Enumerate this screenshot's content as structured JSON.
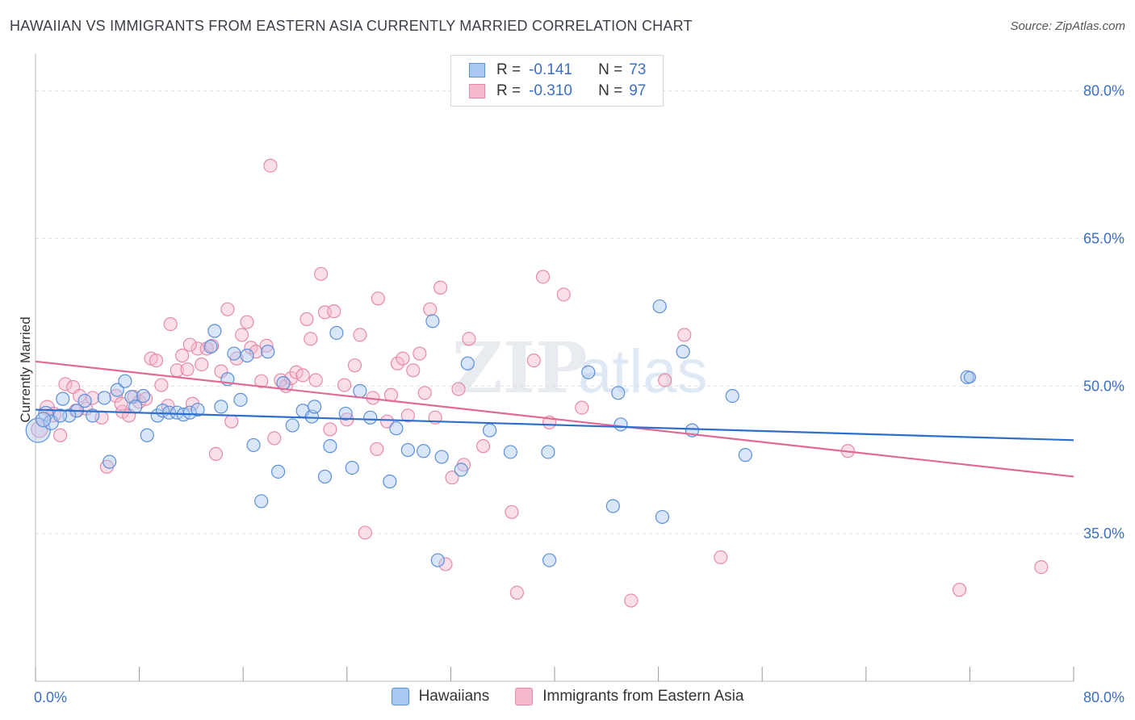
{
  "header": {
    "title": "HAWAIIAN VS IMMIGRANTS FROM EASTERN ASIA CURRENTLY MARRIED CORRELATION CHART",
    "source": "Source: ZipAtlas.com"
  },
  "watermark": {
    "zip": "ZIP",
    "atlas": "atlas"
  },
  "legend_top": {
    "rows": [
      {
        "r_label": "R =",
        "r_value": "-0.141",
        "n_label": "N =",
        "n_value": "73"
      },
      {
        "r_label": "R =",
        "r_value": "-0.310",
        "n_label": "N =",
        "n_value": "97"
      }
    ]
  },
  "colors": {
    "blue_fill": "#aac8ef",
    "blue_stroke": "#5b8fd8",
    "blue_line": "#2f6fcc",
    "pink_fill": "#f6b8cc",
    "pink_stroke": "#e58aa8",
    "pink_line": "#e06a94",
    "grid": "#dddddd",
    "tick_text": "#3b6fc7"
  },
  "chart_data": {
    "type": "scatter",
    "title": "HAWAIIAN VS IMMIGRANTS FROM EASTERN ASIA CURRENTLY MARRIED CORRELATION CHART",
    "xlabel": "",
    "ylabel": "Currently Married",
    "xlim": [
      0,
      80
    ],
    "ylim": [
      20,
      83
    ],
    "x_tick_labels": [
      "0.0%",
      "80.0%"
    ],
    "y_ticks": [
      {
        "value": 35,
        "label": "35.0%"
      },
      {
        "value": 50,
        "label": "50.0%"
      },
      {
        "value": 65,
        "label": "65.0%"
      },
      {
        "value": 80,
        "label": "80.0%"
      }
    ],
    "grid": "horizontal dashed",
    "legend_position": "bottom",
    "series": [
      {
        "name": "Hawaiians",
        "trend": {
          "x": [
            0,
            80
          ],
          "y": [
            47.6,
            44.5
          ]
        },
        "points": [
          [
            0.2,
            45.5,
            14
          ],
          [
            0.8,
            47.2,
            8
          ],
          [
            1.2,
            46.3,
            8
          ],
          [
            2.1,
            48.7,
            7
          ],
          [
            3.2,
            47.5,
            7
          ],
          [
            3.8,
            48.5,
            7
          ],
          [
            4.4,
            47.0,
            7
          ],
          [
            5.3,
            48.8,
            7
          ],
          [
            5.7,
            42.3,
            7
          ],
          [
            6.3,
            49.6,
            7
          ],
          [
            6.9,
            50.5,
            7
          ],
          [
            7.4,
            48.9,
            7
          ],
          [
            7.7,
            47.9,
            7
          ],
          [
            8.3,
            49.0,
            7
          ],
          [
            8.6,
            45.0,
            7
          ],
          [
            9.4,
            47.0,
            7
          ],
          [
            9.8,
            47.5,
            7
          ],
          [
            10.3,
            47.3,
            7
          ],
          [
            10.9,
            47.3,
            7
          ],
          [
            11.4,
            47.1,
            7
          ],
          [
            11.9,
            47.3,
            7
          ],
          [
            12.5,
            47.6,
            7
          ],
          [
            13.5,
            54.0,
            7
          ],
          [
            13.8,
            55.6,
            7
          ],
          [
            14.3,
            47.9,
            7
          ],
          [
            14.8,
            50.7,
            7
          ],
          [
            15.3,
            53.3,
            7
          ],
          [
            15.8,
            48.6,
            7
          ],
          [
            16.3,
            53.1,
            7
          ],
          [
            16.8,
            44.0,
            7
          ],
          [
            17.4,
            38.3,
            7
          ],
          [
            17.9,
            53.5,
            7
          ],
          [
            18.7,
            41.3,
            7
          ],
          [
            19.1,
            50.3,
            7
          ],
          [
            19.8,
            46.0,
            7
          ],
          [
            20.6,
            47.5,
            7
          ],
          [
            21.3,
            46.9,
            7
          ],
          [
            21.5,
            47.9,
            7
          ],
          [
            22.3,
            40.8,
            7
          ],
          [
            22.7,
            43.9,
            7
          ],
          [
            23.2,
            55.4,
            7
          ],
          [
            23.9,
            47.2,
            7
          ],
          [
            24.4,
            41.7,
            7
          ],
          [
            25.0,
            49.5,
            7
          ],
          [
            25.8,
            46.8,
            7
          ],
          [
            27.3,
            40.3,
            7
          ],
          [
            27.8,
            45.7,
            7
          ],
          [
            28.7,
            43.5,
            7
          ],
          [
            29.9,
            43.4,
            7
          ],
          [
            30.6,
            56.6,
            7
          ],
          [
            31.0,
            32.3,
            7
          ],
          [
            31.3,
            42.8,
            7
          ],
          [
            32.8,
            41.5,
            7
          ],
          [
            33.3,
            52.3,
            7
          ],
          [
            35.0,
            45.5,
            7
          ],
          [
            36.6,
            43.3,
            7
          ],
          [
            39.5,
            43.3,
            7
          ],
          [
            39.6,
            32.3,
            7
          ],
          [
            42.6,
            51.4,
            7
          ],
          [
            44.5,
            37.8,
            7
          ],
          [
            44.9,
            49.3,
            7
          ],
          [
            45.1,
            46.1,
            7
          ],
          [
            48.1,
            58.1,
            7
          ],
          [
            48.3,
            36.7,
            7
          ],
          [
            49.9,
            53.5,
            7
          ],
          [
            50.6,
            45.5,
            7
          ],
          [
            53.7,
            49.0,
            7
          ],
          [
            54.7,
            43.0,
            7
          ],
          [
            71.8,
            50.9,
            7
          ],
          [
            72.0,
            50.9,
            6
          ],
          [
            2.6,
            47.0,
            7
          ],
          [
            1.9,
            47.0,
            7
          ],
          [
            0.6,
            46.6,
            8
          ]
        ]
      },
      {
        "name": "Immigrants from Eastern Asia",
        "trend": {
          "x": [
            0,
            80
          ],
          "y": [
            52.5,
            40.8
          ]
        },
        "points": [
          [
            0.3,
            45.6,
            9
          ],
          [
            0.9,
            47.8,
            8
          ],
          [
            1.4,
            47.1,
            8
          ],
          [
            1.9,
            45.0,
            7
          ],
          [
            2.3,
            50.2,
            7
          ],
          [
            2.9,
            49.9,
            7
          ],
          [
            3.4,
            49.0,
            7
          ],
          [
            3.9,
            47.7,
            7
          ],
          [
            4.4,
            48.8,
            7
          ],
          [
            5.1,
            46.8,
            7
          ],
          [
            5.5,
            41.8,
            7
          ],
          [
            6.2,
            49.0,
            7
          ],
          [
            6.7,
            47.4,
            7
          ],
          [
            7.2,
            47.0,
            7
          ],
          [
            7.6,
            48.9,
            7
          ],
          [
            8.0,
            48.4,
            7
          ],
          [
            8.5,
            48.7,
            7
          ],
          [
            8.9,
            52.8,
            7
          ],
          [
            9.3,
            52.6,
            7
          ],
          [
            9.7,
            50.1,
            7
          ],
          [
            10.2,
            48.0,
            7
          ],
          [
            10.4,
            56.3,
            7
          ],
          [
            10.9,
            51.6,
            7
          ],
          [
            11.3,
            53.1,
            7
          ],
          [
            11.7,
            51.7,
            7
          ],
          [
            12.1,
            48.2,
            7
          ],
          [
            12.5,
            53.8,
            7
          ],
          [
            12.8,
            52.2,
            7
          ],
          [
            13.2,
            53.8,
            7
          ],
          [
            13.6,
            54.1,
            7
          ],
          [
            13.9,
            43.1,
            7
          ],
          [
            14.3,
            51.5,
            7
          ],
          [
            14.8,
            57.8,
            7
          ],
          [
            15.1,
            46.4,
            7
          ],
          [
            15.5,
            52.8,
            7
          ],
          [
            15.9,
            55.2,
            7
          ],
          [
            16.3,
            56.5,
            7
          ],
          [
            16.6,
            53.9,
            7
          ],
          [
            17.0,
            53.5,
            7
          ],
          [
            17.4,
            50.5,
            7
          ],
          [
            17.8,
            54.1,
            7
          ],
          [
            18.1,
            72.4,
            7
          ],
          [
            18.4,
            44.7,
            7
          ],
          [
            18.9,
            50.6,
            7
          ],
          [
            19.3,
            50.0,
            7
          ],
          [
            19.7,
            50.8,
            7
          ],
          [
            20.1,
            51.4,
            7
          ],
          [
            20.6,
            51.1,
            7
          ],
          [
            20.9,
            56.8,
            7
          ],
          [
            21.2,
            54.8,
            7
          ],
          [
            21.6,
            50.6,
            7
          ],
          [
            22.0,
            61.4,
            7
          ],
          [
            22.3,
            57.5,
            7
          ],
          [
            22.7,
            45.6,
            7
          ],
          [
            23.0,
            57.6,
            7
          ],
          [
            23.8,
            50.1,
            7
          ],
          [
            24.6,
            52.1,
            7
          ],
          [
            25.0,
            55.2,
            7
          ],
          [
            25.4,
            35.1,
            7
          ],
          [
            26.0,
            48.8,
            7
          ],
          [
            26.4,
            58.9,
            7
          ],
          [
            27.1,
            46.4,
            7
          ],
          [
            27.9,
            52.3,
            7
          ],
          [
            28.3,
            52.8,
            7
          ],
          [
            28.7,
            47.0,
            7
          ],
          [
            29.1,
            51.6,
            7
          ],
          [
            29.6,
            53.3,
            7
          ],
          [
            30.0,
            49.3,
            7
          ],
          [
            30.4,
            57.8,
            7
          ],
          [
            30.8,
            46.8,
            7
          ],
          [
            31.2,
            60.0,
            7
          ],
          [
            31.6,
            31.9,
            7
          ],
          [
            32.1,
            40.7,
            7
          ],
          [
            32.6,
            49.7,
            7
          ],
          [
            33.0,
            42.0,
            7
          ],
          [
            33.4,
            54.8,
            7
          ],
          [
            34.5,
            43.9,
            7
          ],
          [
            36.7,
            37.2,
            7
          ],
          [
            37.1,
            29.0,
            7
          ],
          [
            38.4,
            52.6,
            7
          ],
          [
            39.1,
            61.1,
            7
          ],
          [
            39.6,
            46.3,
            7
          ],
          [
            40.7,
            59.3,
            7
          ],
          [
            42.1,
            47.8,
            7
          ],
          [
            45.9,
            28.2,
            7
          ],
          [
            48.5,
            50.6,
            7
          ],
          [
            50.0,
            55.2,
            7
          ],
          [
            52.8,
            32.6,
            7
          ],
          [
            62.6,
            43.4,
            7
          ],
          [
            71.2,
            29.3,
            7
          ],
          [
            77.5,
            31.6,
            7
          ],
          [
            26.3,
            43.6,
            7
          ],
          [
            27.4,
            49.1,
            7
          ],
          [
            24.0,
            46.6,
            7
          ],
          [
            3.1,
            47.5,
            7
          ],
          [
            6.6,
            48.2,
            7
          ],
          [
            11.9,
            54.2,
            7
          ]
        ]
      }
    ]
  },
  "legend_bottom": {
    "items": [
      {
        "label": "Hawaiians"
      },
      {
        "label": "Immigrants from Eastern Asia"
      }
    ]
  }
}
